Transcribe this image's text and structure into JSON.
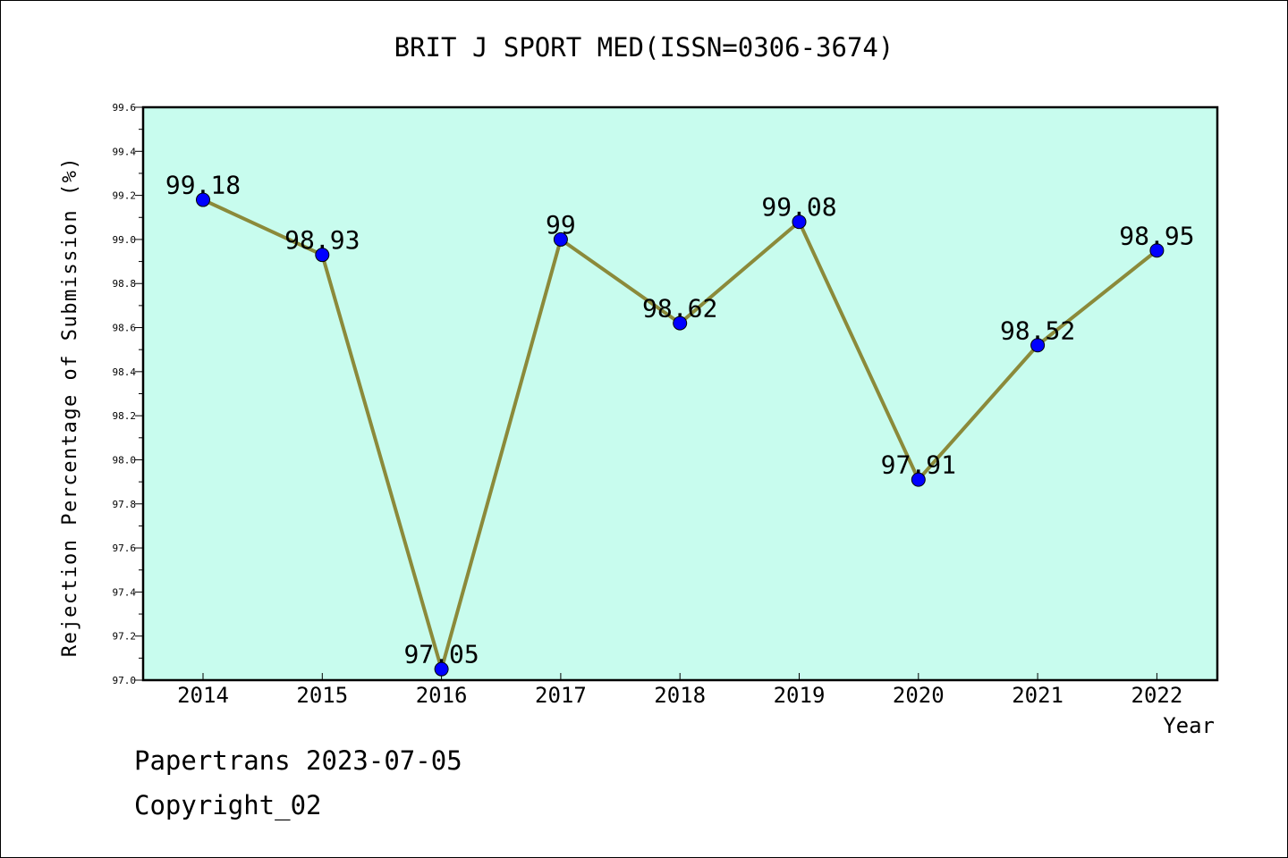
{
  "chart_data": {
    "type": "line",
    "title": "BRIT J SPORT MED(ISSN=0306-3674)",
    "xlabel": "Year",
    "ylabel": "Rejection Percentage of Submission (%)",
    "categories": [
      "2014",
      "2015",
      "2016",
      "2017",
      "2018",
      "2019",
      "2020",
      "2021",
      "2022"
    ],
    "values": [
      99.18,
      98.93,
      97.05,
      99,
      98.62,
      99.08,
      97.91,
      98.52,
      98.95
    ],
    "data_labels": [
      "99.18",
      "98.93",
      "97.05",
      "99",
      "98.62",
      "99.08",
      "97.91",
      "98.52",
      "98.95"
    ],
    "ylim": [
      97.0,
      99.6
    ],
    "y_ticks": [
      97.0,
      97.2,
      97.4,
      97.6,
      97.8,
      98.0,
      98.2,
      98.4,
      98.6,
      98.8,
      99.0,
      99.2,
      99.4,
      99.6
    ],
    "y_tick_labels": [
      "97.0",
      "97.2",
      "97.4",
      "97.6",
      "97.8",
      "98.0",
      "98.2",
      "98.4",
      "98.6",
      "98.8",
      "99.0",
      "99.2",
      "99.4",
      "99.6"
    ],
    "grid": false,
    "colors": {
      "plot_background": "#c8fcee",
      "line": "#8b8a3a",
      "marker": "#0000ff"
    }
  },
  "footer": {
    "line1": "Papertrans 2023-07-05",
    "line2": "Copyright_02"
  }
}
